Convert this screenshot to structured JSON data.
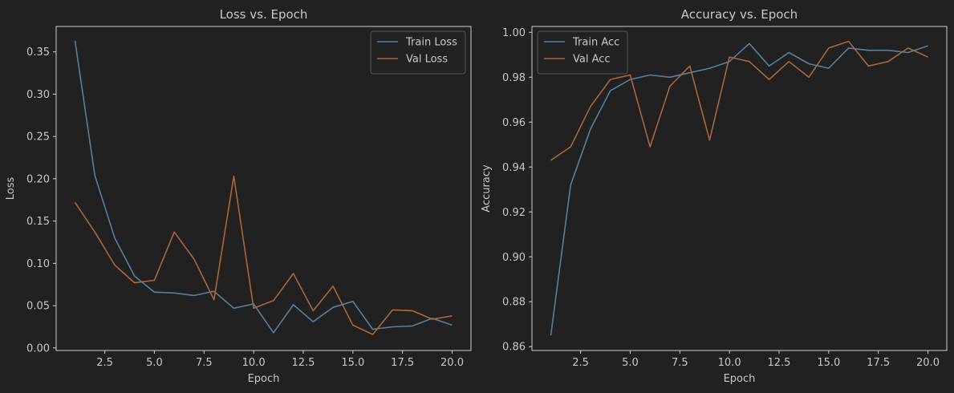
{
  "colors": {
    "background": "#212121",
    "axes_edge": "#d0d0d0",
    "text": "#c8c8c8",
    "train": "#5a7f9c",
    "val": "#a8683a",
    "legend_bg": "#222222",
    "legend_edge": "#555555"
  },
  "chart_data": [
    {
      "type": "line",
      "title": "Loss vs. Epoch",
      "xlabel": "Epoch",
      "ylabel": "Loss",
      "xlim": [
        0.05,
        20.95
      ],
      "ylim": [
        -0.003,
        0.38
      ],
      "xticks": [
        2.5,
        5.0,
        7.5,
        10.0,
        12.5,
        15.0,
        17.5,
        20.0
      ],
      "xtick_labels": [
        "2.5",
        "5.0",
        "7.5",
        "10.0",
        "12.5",
        "15.0",
        "17.5",
        "20.0"
      ],
      "yticks": [
        0.0,
        0.05,
        0.1,
        0.15,
        0.2,
        0.25,
        0.3,
        0.35
      ],
      "ytick_labels": [
        "0.00",
        "0.05",
        "0.10",
        "0.15",
        "0.20",
        "0.25",
        "0.30",
        "0.35"
      ],
      "legend_position": "top-right",
      "x": [
        1,
        2,
        3,
        4,
        5,
        6,
        7,
        8,
        9,
        10,
        11,
        12,
        13,
        14,
        15,
        16,
        17,
        18,
        19,
        20
      ],
      "series": [
        {
          "name": "Train Loss",
          "color_key": "train",
          "values": [
            0.363,
            0.204,
            0.13,
            0.085,
            0.066,
            0.065,
            0.062,
            0.067,
            0.047,
            0.052,
            0.018,
            0.051,
            0.031,
            0.048,
            0.055,
            0.022,
            0.025,
            0.026,
            0.035,
            0.027
          ]
        },
        {
          "name": "Val Loss",
          "color_key": "val",
          "values": [
            0.172,
            0.137,
            0.098,
            0.077,
            0.08,
            0.137,
            0.105,
            0.057,
            0.203,
            0.047,
            0.056,
            0.088,
            0.044,
            0.073,
            0.027,
            0.016,
            0.045,
            0.044,
            0.034,
            0.038
          ]
        }
      ]
    },
    {
      "type": "line",
      "title": "Accuracy vs. Epoch",
      "xlabel": "Epoch",
      "ylabel": "Accuracy",
      "xlim": [
        0.05,
        20.95
      ],
      "ylim": [
        0.8583,
        1.0026
      ],
      "xticks": [
        2.5,
        5.0,
        7.5,
        10.0,
        12.5,
        15.0,
        17.5,
        20.0
      ],
      "xtick_labels": [
        "2.5",
        "5.0",
        "7.5",
        "10.0",
        "12.5",
        "15.0",
        "17.5",
        "20.0"
      ],
      "yticks": [
        0.86,
        0.88,
        0.9,
        0.92,
        0.94,
        0.96,
        0.98,
        1.0
      ],
      "ytick_labels": [
        "0.86",
        "0.88",
        "0.90",
        "0.92",
        "0.94",
        "0.96",
        "0.98",
        "1.00"
      ],
      "legend_position": "top-left",
      "x": [
        1,
        2,
        3,
        4,
        5,
        6,
        7,
        8,
        9,
        10,
        11,
        12,
        13,
        14,
        15,
        16,
        17,
        18,
        19,
        20
      ],
      "series": [
        {
          "name": "Train Acc",
          "color_key": "train",
          "values": [
            0.865,
            0.932,
            0.957,
            0.974,
            0.979,
            0.981,
            0.98,
            0.982,
            0.984,
            0.987,
            0.995,
            0.985,
            0.991,
            0.986,
            0.984,
            0.993,
            0.992,
            0.992,
            0.991,
            0.994
          ]
        },
        {
          "name": "Val Acc",
          "color_key": "val",
          "values": [
            0.943,
            0.949,
            0.967,
            0.979,
            0.981,
            0.949,
            0.976,
            0.985,
            0.952,
            0.989,
            0.987,
            0.979,
            0.987,
            0.98,
            0.993,
            0.996,
            0.985,
            0.987,
            0.993,
            0.989
          ]
        }
      ]
    }
  ]
}
